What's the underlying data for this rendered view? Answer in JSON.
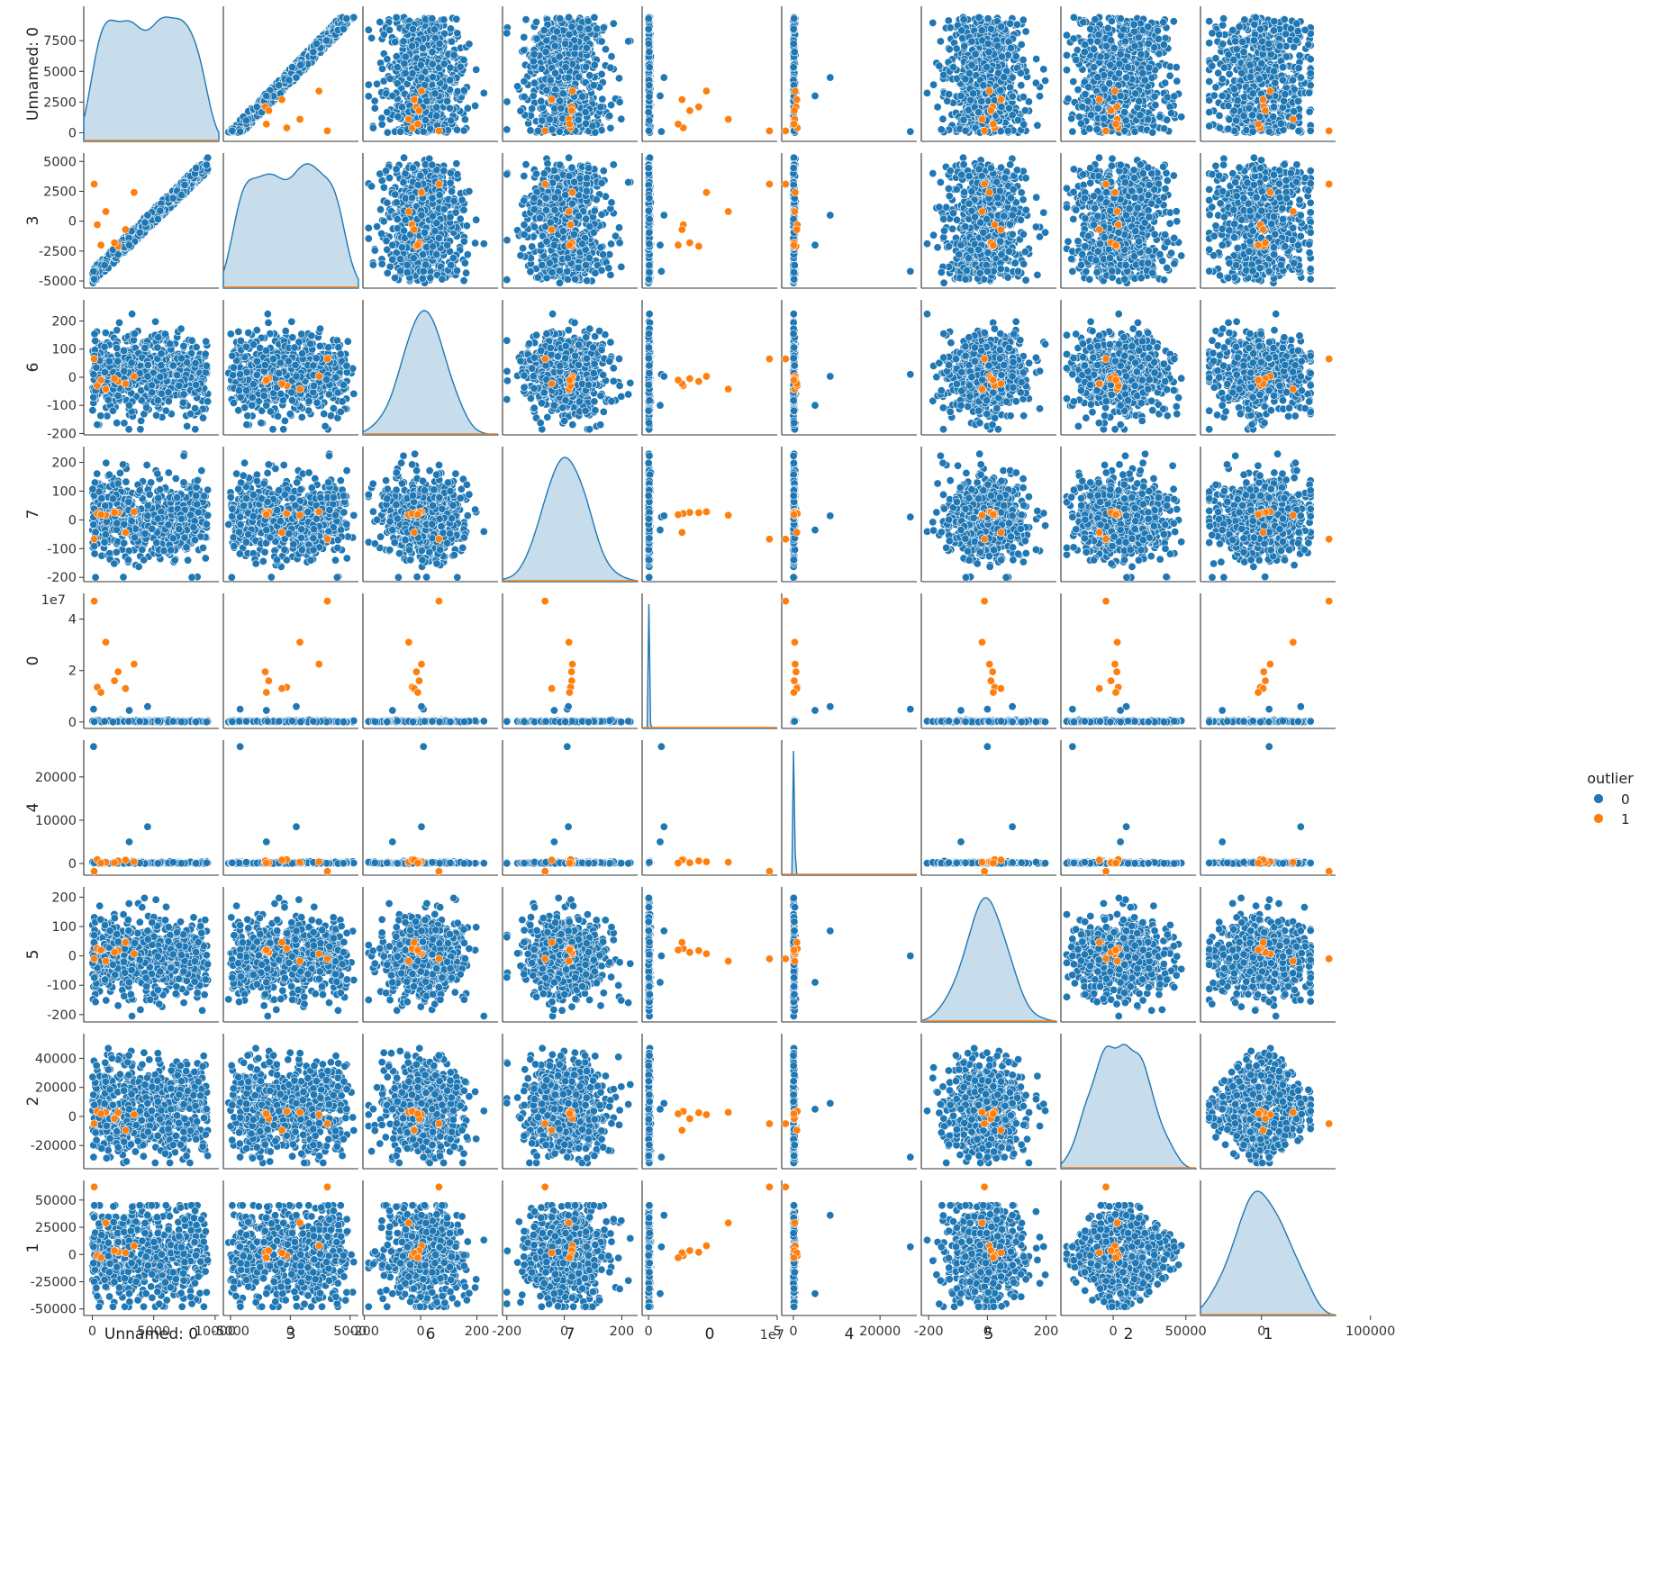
{
  "chart_data": {
    "type": "scatter",
    "subtype": "pairplot",
    "variables": [
      "Unnamed: 0",
      "3",
      "6",
      "7",
      "0",
      "4",
      "5",
      "2",
      "1"
    ],
    "hue": {
      "name": "outlier",
      "levels": [
        {
          "label": "0",
          "color": "#1f77b4"
        },
        {
          "label": "1",
          "color": "#ff7f0e"
        }
      ]
    },
    "diagonal": "kde",
    "legend_position": "right",
    "grid": false,
    "axes": {
      "Unnamed: 0": {
        "range": [
          -700,
          10300
        ],
        "ticks": [
          0,
          5000,
          10000
        ],
        "ytick_labels": [
          "0",
          "2500",
          "5000",
          "7500"
        ],
        "yticks": [
          0,
          2500,
          5000,
          7500
        ]
      },
      "3": {
        "range": [
          -5600,
          5700
        ],
        "ticks": [
          -5000,
          0,
          5000
        ],
        "yticks": [
          -5000,
          -2500,
          0,
          2500,
          5000
        ]
      },
      "6": {
        "range": [
          -205,
          275
        ],
        "ticks": [
          -200,
          0,
          200
        ],
        "yticks": [
          -200,
          -100,
          0,
          100,
          200
        ]
      },
      "7": {
        "range": [
          -215,
          255
        ],
        "ticks": [
          -200,
          0,
          200
        ],
        "yticks": [
          -200,
          -100,
          0,
          100,
          200
        ]
      },
      "0": {
        "range": [
          -2500000,
          50000000
        ],
        "ticks": [
          0,
          5
        ],
        "yticks": [
          0,
          2,
          4
        ],
        "offset": "1e7",
        "scale": 10000000
      },
      "4": {
        "range": [
          -2700,
          28500
        ],
        "ticks": [
          0,
          20000
        ],
        "yticks": [
          0,
          10000,
          20000
        ]
      },
      "5": {
        "range": [
          -225,
          235
        ],
        "ticks": [
          -200,
          0,
          200
        ],
        "yticks": [
          -200,
          -100,
          0,
          100,
          200
        ]
      },
      "2": {
        "range": [
          -36000,
          57000
        ],
        "ticks": [
          0,
          50000
        ],
        "yticks": [
          -20000,
          0,
          20000,
          40000
        ]
      },
      "1": {
        "range": [
          -56000,
          68000
        ],
        "ticks": [
          0,
          100000
        ],
        "yticks": [
          -50000,
          -25000,
          0,
          25000,
          50000
        ]
      }
    },
    "outlier_points": [
      {
        "Unnamed: 0": 150,
        "3": 3100,
        "6": 65,
        "7": -67,
        "0": 47000000,
        "4": -1800,
        "5": -10,
        "2": -5000,
        "1": 62000
      },
      {
        "Unnamed: 0": 1100,
        "3": 800,
        "6": -42,
        "7": 16,
        "0": 31000000,
        "4": 300,
        "5": -18,
        "2": 2800,
        "1": 29000
      },
      {
        "Unnamed: 0": 3400,
        "3": 2400,
        "6": 3,
        "7": 28,
        "0": 22500000,
        "4": 400,
        "5": 7,
        "2": 1200,
        "1": 8000
      },
      {
        "Unnamed: 0": 2100,
        "3": -2100,
        "6": -15,
        "7": 25,
        "0": 19500000,
        "4": 600,
        "5": 18,
        "2": 2500,
        "1": 2000
      },
      {
        "Unnamed: 0": 1800,
        "3": -1800,
        "6": -5,
        "7": 26,
        "0": 16000000,
        "4": 200,
        "5": 12,
        "2": -1500,
        "1": 3500
      },
      {
        "Unnamed: 0": 400,
        "3": -300,
        "6": -30,
        "7": 22,
        "0": 13500000,
        "4": 900,
        "5": 25,
        "2": 3500,
        "1": -1000
      },
      {
        "Unnamed: 0": 2700,
        "3": -700,
        "6": -23,
        "7": -44,
        "0": 13000000,
        "4": 800,
        "5": 46,
        "2": -9500,
        "1": 1500
      },
      {
        "Unnamed: 0": 700,
        "3": -2000,
        "6": -10,
        "7": 18,
        "0": 11500000,
        "4": 100,
        "5": 20,
        "2": 1800,
        "1": -3000
      }
    ],
    "notable_inliers": [
      {
        "Unnamed: 0": 100,
        "3": -4200,
        "6": 10,
        "7": 10,
        "0": 5000000,
        "4": 27000,
        "5": 0,
        "2": -28000,
        "1": 7000
      },
      {
        "Unnamed: 0": 4500,
        "3": 500,
        "6": 3,
        "7": 14,
        "0": 6000000,
        "4": 8500,
        "5": 85,
        "2": 9000,
        "1": 36000
      },
      {
        "Unnamed: 0": 3000,
        "3": -2000,
        "6": -100,
        "7": -35,
        "0": 4500000,
        "4": 5000,
        "5": -90,
        "2": 5000,
        "1": -36000
      }
    ]
  }
}
